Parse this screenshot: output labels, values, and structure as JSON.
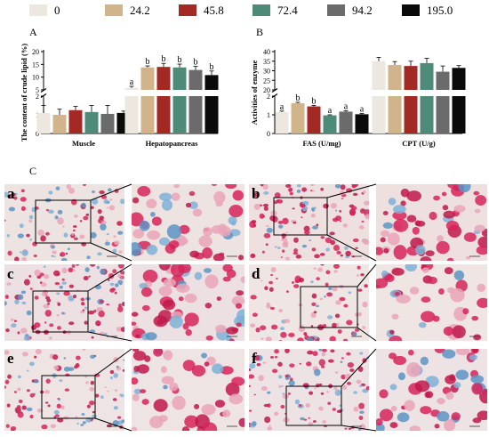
{
  "legend": {
    "entries": [
      {
        "label": "0",
        "color": "#ece8e0"
      },
      {
        "label": "24.2",
        "color": "#d2b48c"
      },
      {
        "label": "45.8",
        "color": "#a32a24"
      },
      {
        "label": "72.4",
        "color": "#4e8a78"
      },
      {
        "label": "94.2",
        "color": "#6b6b6b"
      },
      {
        "label": "195.0",
        "color": "#0a0a0a"
      }
    ]
  },
  "panels": {
    "a_letter": "A",
    "b_letter": "B",
    "c_letter": "C"
  },
  "chart_data": [
    {
      "type": "bar",
      "panel": "A",
      "ylabel": "The content of crude lipid (%)",
      "categories": [
        "Muscle",
        "Hepatopancreas"
      ],
      "axis_break": true,
      "lower_ylim": [
        0,
        2
      ],
      "lower_ticks": [
        "0",
        "1",
        "2"
      ],
      "upper_ylim": [
        5,
        20
      ],
      "upper_ticks": [
        "5",
        "10",
        "15",
        "20"
      ],
      "series": [
        {
          "name": "0",
          "values": [
            1.1,
            5.8
          ],
          "errors": [
            0.4,
            0.6
          ],
          "letters": [
            "",
            "a"
          ]
        },
        {
          "name": "24.2",
          "values": [
            1.0,
            13.8
          ],
          "errors": [
            0.3,
            0.6
          ],
          "letters": [
            "",
            "b"
          ]
        },
        {
          "name": "45.8",
          "values": [
            1.25,
            14.0
          ],
          "errors": [
            0.2,
            1.4
          ],
          "letters": [
            "",
            "b"
          ]
        },
        {
          "name": "72.4",
          "values": [
            1.15,
            13.8
          ],
          "errors": [
            0.35,
            1.3
          ],
          "letters": [
            "",
            "b"
          ]
        },
        {
          "name": "94.2",
          "values": [
            1.05,
            12.8
          ],
          "errors": [
            0.45,
            1.4
          ],
          "letters": [
            "",
            "b"
          ]
        },
        {
          "name": "195.0",
          "values": [
            1.1,
            10.8
          ],
          "errors": [
            0.1,
            1.6
          ],
          "letters": [
            "",
            "b"
          ]
        }
      ]
    },
    {
      "type": "bar",
      "panel": "B",
      "ylabel": "Activities of enzyme",
      "categories": [
        "FAS (U/mg)",
        "CPT (U/g)"
      ],
      "axis_break": true,
      "lower_ylim": [
        0,
        2
      ],
      "lower_ticks": [
        "0",
        "1",
        "2"
      ],
      "upper_ylim": [
        20,
        40
      ],
      "upper_ticks": [
        "20",
        "25",
        "30",
        "35",
        "40"
      ],
      "series": [
        {
          "name": "0",
          "values": [
            1.15,
            35.0
          ],
          "errors": [
            0.05,
            2.0
          ],
          "letters": [
            "a",
            ""
          ]
        },
        {
          "name": "24.2",
          "values": [
            1.62,
            33.0
          ],
          "errors": [
            0.05,
            1.8
          ],
          "letters": [
            "b",
            ""
          ]
        },
        {
          "name": "45.8",
          "values": [
            1.45,
            32.5
          ],
          "errors": [
            0.05,
            2.5
          ],
          "letters": [
            "b",
            ""
          ]
        },
        {
          "name": "72.4",
          "values": [
            0.97,
            34.0
          ],
          "errors": [
            0.03,
            2.5
          ],
          "letters": [
            "a",
            ""
          ]
        },
        {
          "name": "94.2",
          "values": [
            1.17,
            29.5
          ],
          "errors": [
            0.05,
            3.0
          ],
          "letters": [
            "a",
            ""
          ]
        },
        {
          "name": "195.0",
          "values": [
            1.03,
            31.5
          ],
          "errors": [
            0.04,
            1.2
          ],
          "letters": [
            "a",
            ""
          ]
        }
      ]
    }
  ],
  "micrographs": [
    {
      "letter": "a",
      "bg": "#ede3e0",
      "red": 0.28,
      "blue": 0.22
    },
    {
      "letter": "b",
      "bg": "#efe0e0",
      "red": 0.55,
      "blue": 0.15
    },
    {
      "letter": "c",
      "bg": "#ede0e2",
      "red": 0.5,
      "blue": 0.2
    },
    {
      "letter": "d",
      "bg": "#efe5e3",
      "red": 0.38,
      "blue": 0.12
    },
    {
      "letter": "e",
      "bg": "#eee4e4",
      "red": 0.38,
      "blue": 0.18
    },
    {
      "letter": "f",
      "bg": "#eee3e4",
      "red": 0.4,
      "blue": 0.22
    }
  ]
}
